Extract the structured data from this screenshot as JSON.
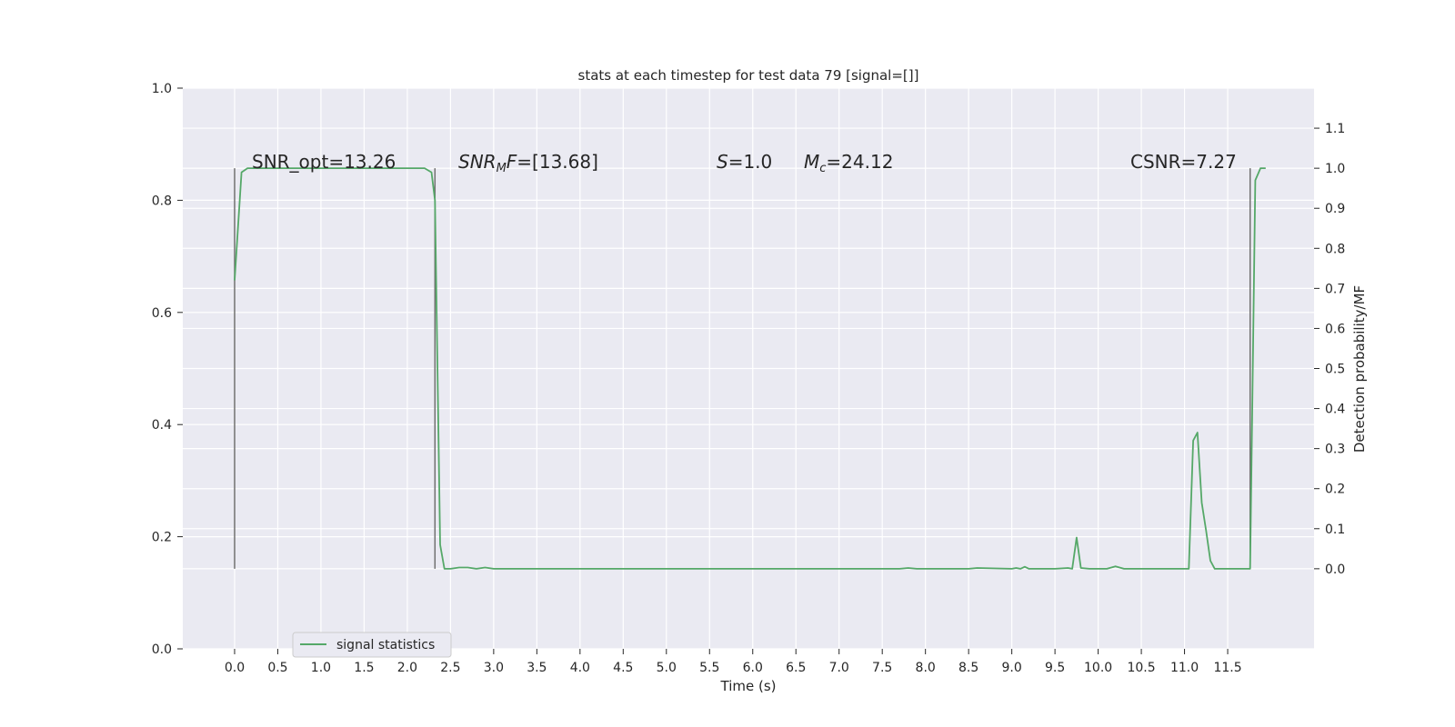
{
  "chart_data": {
    "type": "line",
    "title": "stats at each timestep for test data 79 [signal=[]]",
    "xlabel": "Time (s)",
    "ylabel_left": "",
    "ylabel_right": "Detection probability/MF",
    "xlim": [
      -0.6,
      12.5
    ],
    "ylim_left": [
      0,
      1.0
    ],
    "ylim_right": [
      -0.2,
      1.2
    ],
    "x_ticks": [
      "0.0",
      "0.5",
      "1.0",
      "1.5",
      "2.0",
      "2.5",
      "3.0",
      "3.5",
      "4.0",
      "4.5",
      "5.0",
      "5.5",
      "6.0",
      "6.5",
      "7.0",
      "7.5",
      "8.0",
      "8.5",
      "9.0",
      "9.5",
      "10.0",
      "10.5",
      "11.0",
      "11.5"
    ],
    "y_ticks_left": [
      "0.0",
      "0.2",
      "0.4",
      "0.6",
      "0.8",
      "1.0"
    ],
    "y_ticks_right": [
      "0.0",
      "0.1",
      "0.2",
      "0.3",
      "0.4",
      "0.5",
      "0.6",
      "0.7",
      "0.8",
      "0.9",
      "1.0",
      "1.1"
    ],
    "grid": true,
    "legend_position": "bottom-left",
    "series": [
      {
        "name": "signal statistics",
        "color": "#55a868",
        "x": [
          0.0,
          0.08,
          0.15,
          0.3,
          0.5,
          1.0,
          1.5,
          2.0,
          2.2,
          2.28,
          2.32,
          2.38,
          2.43,
          2.5,
          2.6,
          2.7,
          2.8,
          2.9,
          3.0,
          3.2,
          3.5,
          4.0,
          5.0,
          6.0,
          7.0,
          7.7,
          7.8,
          7.9,
          8.0,
          8.5,
          8.6,
          9.0,
          9.05,
          9.1,
          9.15,
          9.2,
          9.5,
          9.65,
          9.7,
          9.75,
          9.8,
          9.9,
          10.0,
          10.1,
          10.2,
          10.3,
          10.5,
          11.0,
          11.05,
          11.1,
          11.15,
          11.2,
          11.25,
          11.3,
          11.35,
          11.4,
          11.5,
          11.6,
          11.7,
          11.76,
          11.82,
          11.88,
          11.94
        ],
        "y": [
          0.72,
          0.99,
          1.0,
          1.0,
          1.0,
          1.0,
          1.0,
          1.0,
          1.0,
          0.99,
          0.92,
          0.06,
          0.0,
          0.0,
          0.003,
          0.003,
          0.0,
          0.003,
          0.0,
          0.0,
          0.0,
          0.0,
          0.0,
          0.0,
          0.0,
          0.0,
          0.002,
          0.0,
          0.0,
          0.0,
          0.002,
          0.0,
          0.002,
          0.0,
          0.005,
          0.0,
          0.0,
          0.002,
          0.0,
          0.078,
          0.002,
          0.0,
          0.0,
          0.0,
          0.006,
          0.0,
          0.0,
          0.0,
          0.0,
          0.32,
          0.34,
          0.165,
          0.095,
          0.02,
          0.0,
          0.0,
          0.0,
          0.0,
          0.0,
          0.0,
          0.97,
          1.0,
          1.0
        ]
      }
    ],
    "vlines": [
      0.0,
      2.32,
      11.76
    ],
    "vline_color": "#707070",
    "annotations": [
      {
        "id": "snr-opt",
        "text": "SNR_opt=13.26",
        "x": 0.22,
        "y_right": 1.0
      },
      {
        "id": "snr-mf",
        "text": "SNR_MF=[13.68]",
        "x": 2.62,
        "y_right": 1.0
      },
      {
        "id": "s",
        "text": "S=1.0",
        "x": 5.62,
        "y_right": 1.0
      },
      {
        "id": "mc",
        "text": "M_c=24.12",
        "x": 6.62,
        "y_right": 1.0
      },
      {
        "id": "csnr",
        "text": "CSNR=7.27",
        "x": 10.38,
        "y_right": 1.0
      }
    ]
  }
}
